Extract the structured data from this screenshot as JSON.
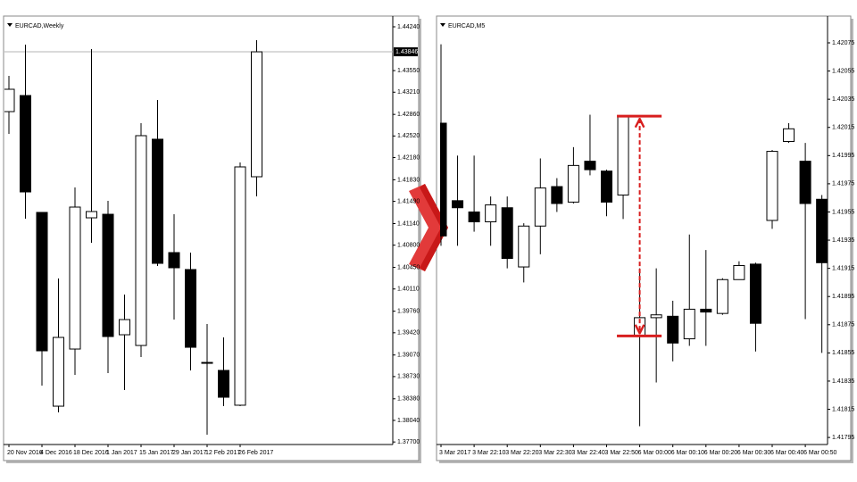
{
  "chart_data": [
    {
      "type": "candlestick",
      "title": "EURCAD,Weekly",
      "categories": [
        "20 Nov 2016",
        null,
        "4 Dec 2016",
        null,
        "18 Dec 2016",
        null,
        "1 Jan 2017",
        null,
        "15 Jan 2017",
        null,
        "29 Jan 2017",
        null,
        "12 Feb 2017",
        null,
        "26 Feb 2017",
        null
      ],
      "open": [
        1.42904,
        1.43157,
        1.41316,
        1.38264,
        1.39164,
        1.41231,
        1.41287,
        1.39389,
        1.3922,
        1.42469,
        1.40683,
        1.40416,
        1.38953,
        1.38827,
        1.38279,
        1.41878
      ],
      "high": [
        1.43467,
        1.43959,
        1.41316,
        1.40275,
        1.41709,
        1.43889,
        1.41498,
        1.40022,
        1.42722,
        1.43087,
        1.41287,
        1.40683,
        1.39558,
        1.39347,
        1.42103,
        1.44029
      ],
      "low": [
        1.42553,
        1.41217,
        1.38588,
        1.38166,
        1.38757,
        1.40837,
        1.38785,
        1.38518,
        1.39038,
        1.40472,
        1.39628,
        1.38827,
        1.37815,
        1.38264,
        1.38264,
        1.41569
      ],
      "close": [
        1.43256,
        1.41639,
        1.39136,
        1.39347,
        1.414,
        1.4133,
        1.39361,
        1.39628,
        1.42525,
        1.40514,
        1.40444,
        1.39192,
        1.38953,
        1.38405,
        1.42033,
        1.43846
      ],
      "up_color": "#ffffff",
      "down_color": "#000000",
      "outline_color": "#000000",
      "current_price": 1.43846,
      "ylim": [
        1.3766,
        1.44409
      ],
      "yticks": [
        {
          "value": 1.4424,
          "label": "1.44240"
        },
        {
          "value": 1.4355,
          "label": "1.43550"
        },
        {
          "value": 1.4321,
          "label": "1.43210"
        },
        {
          "value": 1.4286,
          "label": "1.42860"
        },
        {
          "value": 1.4252,
          "label": "1.42520"
        },
        {
          "value": 1.4218,
          "label": "1.42180"
        },
        {
          "value": 1.4183,
          "label": "1.41830"
        },
        {
          "value": 1.4149,
          "label": "1.41490"
        },
        {
          "value": 1.4114,
          "label": "1.41140"
        },
        {
          "value": 1.408,
          "label": "1.40800"
        },
        {
          "value": 1.4045,
          "label": "1.40450"
        },
        {
          "value": 1.4011,
          "label": "1.40110"
        },
        {
          "value": 1.3976,
          "label": "1.39760"
        },
        {
          "value": 1.3942,
          "label": "1.39420"
        },
        {
          "value": 1.3907,
          "label": "1.39070"
        },
        {
          "value": 1.3873,
          "label": "1.38730"
        },
        {
          "value": 1.3838,
          "label": "1.38380"
        },
        {
          "value": 1.3804,
          "label": "1.38040"
        },
        {
          "value": 1.377,
          "label": "1.37700"
        }
      ]
    },
    {
      "type": "candlestick",
      "title": "EURCAD,M5",
      "categories": [
        "3 Mar 2017",
        null,
        "3 Mar 22:10",
        null,
        "3 Mar 22:20",
        null,
        "3 Mar 22:30",
        null,
        "3 Mar 22:40",
        null,
        "3 Mar 22:50",
        null,
        "6 Mar 00:00",
        null,
        "6 Mar 00:10",
        null,
        "6 Mar 00:20",
        null,
        "6 Mar 00:30",
        null,
        "6 Mar 00:40",
        null,
        "6 Mar 00:50",
        null
      ],
      "open": [
        1.42018,
        1.41963,
        1.41955,
        1.41948,
        1.41958,
        1.41916,
        1.41945,
        1.41973,
        1.41962,
        1.41991,
        1.41984,
        1.41967,
        1.41867,
        1.4188,
        1.41881,
        1.41865,
        1.41886,
        1.41883,
        1.41907,
        1.41918,
        1.41949,
        1.42005,
        1.41991,
        1.41964
      ],
      "high": [
        1.42074,
        1.41995,
        1.41995,
        1.41966,
        1.41966,
        1.41947,
        1.41993,
        1.41979,
        1.42001,
        1.42024,
        1.41985,
        1.42023,
        1.41915,
        1.41915,
        1.41892,
        1.41939,
        1.41928,
        1.41908,
        1.4192,
        1.41919,
        1.41999,
        1.42018,
        1.42004,
        1.41967
      ],
      "low": [
        1.41931,
        1.41931,
        1.41941,
        1.41931,
        1.41915,
        1.41905,
        1.41925,
        1.41955,
        1.41961,
        1.41981,
        1.41952,
        1.4195,
        1.41803,
        1.41834,
        1.41849,
        1.4186,
        1.4186,
        1.41882,
        1.41907,
        1.41856,
        1.41943,
        1.42004,
        1.41879,
        1.41855
      ],
      "close": [
        1.41938,
        1.41958,
        1.41948,
        1.4196,
        1.41922,
        1.41945,
        1.41972,
        1.41961,
        1.41988,
        1.41985,
        1.41962,
        1.42023,
        1.4188,
        1.41882,
        1.41862,
        1.41886,
        1.41884,
        1.41907,
        1.41917,
        1.41876,
        1.41998,
        1.42014,
        1.41961,
        1.41919
      ],
      "up_color": "#ffffff",
      "down_color": "#000000",
      "outline_color": "#000000",
      "gap_color": "#d81e1e",
      "ylim": [
        1.4179,
        1.42094
      ],
      "yticks": [
        1.42075,
        1.42055,
        1.42035,
        1.42015,
        1.41995,
        1.41975,
        1.41955,
        1.41935,
        1.41915,
        1.41895,
        1.41875,
        1.41855,
        1.41835,
        1.41815,
        1.41795
      ]
    }
  ]
}
